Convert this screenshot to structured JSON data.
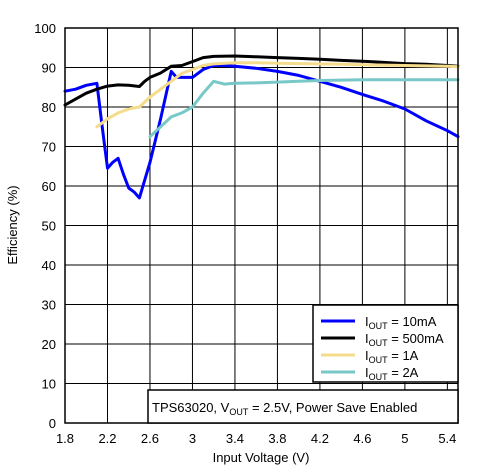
{
  "chart_data": {
    "type": "line",
    "xlabel": "Input Voltage (V)",
    "ylabel": "Efficiency (%)",
    "xlim": [
      1.8,
      5.5
    ],
    "ylim": [
      0,
      100
    ],
    "xticks": [
      1.8,
      2.2,
      2.6,
      3,
      3.4,
      3.8,
      4.2,
      4.6,
      5,
      5.4
    ],
    "xtick_labels": [
      "1.8",
      "2.2",
      "2.6",
      "3",
      "3.4",
      "3.8",
      "4.2",
      "4.6",
      "5",
      "5.4"
    ],
    "yticks": [
      0,
      10,
      20,
      30,
      40,
      50,
      60,
      70,
      80,
      90,
      100
    ],
    "ytick_labels": [
      "0",
      "10",
      "20",
      "30",
      "40",
      "50",
      "60",
      "70",
      "80",
      "90",
      "100"
    ],
    "grid": true,
    "legend_position": "bottom-right",
    "annotation": {
      "prefix": "TPS63020, V",
      "sub": "OUT",
      "suffix": " = 2.5V, Power Save Enabled"
    },
    "series": [
      {
        "name": "10mA",
        "legend_main": "I",
        "legend_sub": "OUT",
        "legend_rest": " = 10mA",
        "color": "#0000ff",
        "x": [
          1.8,
          1.9,
          2.0,
          2.1,
          2.15,
          2.2,
          2.25,
          2.3,
          2.35,
          2.4,
          2.45,
          2.5,
          2.6,
          2.7,
          2.8,
          2.85,
          2.9,
          3.0,
          3.1,
          3.2,
          3.3,
          3.4,
          3.6,
          3.8,
          4.0,
          4.2,
          4.4,
          4.6,
          4.8,
          5.0,
          5.2,
          5.4,
          5.5
        ],
        "y": [
          84,
          84.5,
          85.5,
          86,
          75,
          64.5,
          66,
          67,
          63,
          59.5,
          58.5,
          57,
          66,
          77,
          89,
          87.5,
          87.5,
          87.5,
          89.5,
          90.5,
          90.5,
          90.3,
          89.8,
          89,
          88,
          86.5,
          85,
          83.2,
          81.5,
          79.5,
          76.5,
          74,
          72.5
        ]
      },
      {
        "name": "500mA",
        "legend_main": "I",
        "legend_sub": "OUT",
        "legend_rest": " = 500mA",
        "color": "#000000",
        "x": [
          1.8,
          1.9,
          2.0,
          2.1,
          2.2,
          2.3,
          2.4,
          2.5,
          2.55,
          2.6,
          2.7,
          2.8,
          2.9,
          3.0,
          3.1,
          3.2,
          3.4,
          3.6,
          3.8,
          4.0,
          4.2,
          4.4,
          4.6,
          4.8,
          5.0,
          5.2,
          5.4,
          5.5
        ],
        "y": [
          80.5,
          82,
          83.5,
          84.5,
          85.3,
          85.6,
          85.5,
          85.2,
          86.5,
          87.5,
          88.6,
          90.3,
          90.5,
          91.5,
          92.5,
          92.8,
          92.9,
          92.7,
          92.5,
          92.3,
          92.1,
          91.8,
          91.6,
          91.3,
          91,
          90.8,
          90.5,
          90.3
        ]
      },
      {
        "name": "1A",
        "legend_main": "I",
        "legend_sub": "OUT",
        "legend_rest": " = 1A",
        "color": "#f5dc8c",
        "x": [
          2.1,
          2.2,
          2.3,
          2.4,
          2.5,
          2.6,
          2.7,
          2.8,
          2.9,
          3.0,
          3.1,
          3.2,
          3.4,
          3.6,
          3.8,
          4.0,
          4.2,
          4.4,
          4.6,
          4.8,
          5.0,
          5.2,
          5.4,
          5.5
        ],
        "y": [
          75,
          77,
          78.5,
          79.5,
          80,
          82.5,
          84.5,
          86.5,
          88.5,
          89.5,
          90.5,
          90.9,
          91.2,
          91.2,
          91.1,
          91,
          90.9,
          90.8,
          90.7,
          90.6,
          90.5,
          90.4,
          90.3,
          90.2
        ]
      },
      {
        "name": "2A",
        "legend_main": "I",
        "legend_sub": "OUT",
        "legend_rest": " = 2A",
        "color": "#78c8c8",
        "x": [
          2.6,
          2.7,
          2.8,
          2.9,
          3.0,
          3.1,
          3.2,
          3.3,
          3.4,
          3.6,
          3.8,
          4.0,
          4.2,
          4.4,
          4.6,
          4.8,
          5.0,
          5.2,
          5.4,
          5.5
        ],
        "y": [
          72.5,
          75,
          77.5,
          78.5,
          80,
          83.5,
          86.5,
          85.8,
          86,
          86.1,
          86.3,
          86.5,
          86.7,
          86.8,
          86.9,
          86.9,
          86.9,
          86.9,
          86.9,
          86.9
        ]
      }
    ]
  }
}
